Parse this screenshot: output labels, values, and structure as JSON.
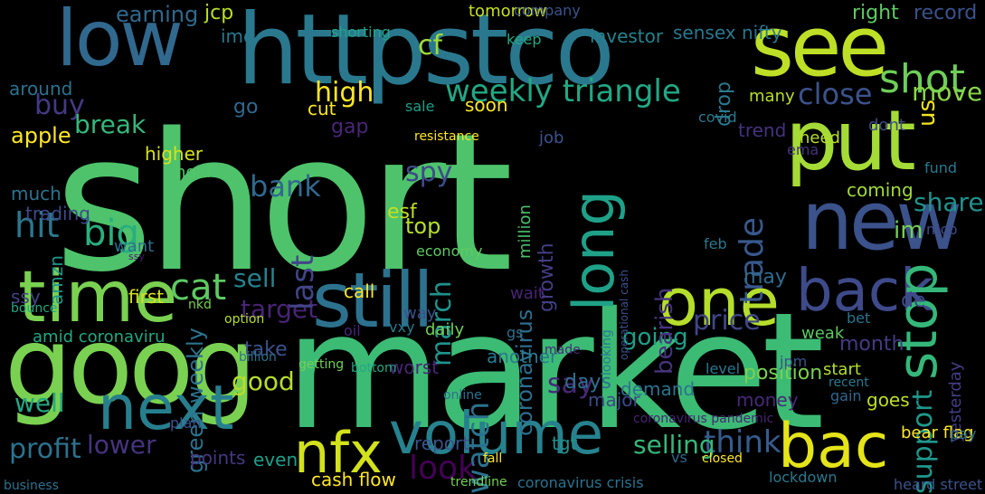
{
  "words": [
    {
      "text": "short",
      "color": "#4ec36b"
    },
    {
      "text": "market",
      "color": "#3cbb75"
    },
    {
      "text": "goog",
      "color": "#7ad151"
    },
    {
      "text": "httpstco",
      "color": "#2a788e"
    },
    {
      "text": "see",
      "color": "#bddf26"
    },
    {
      "text": "low",
      "color": "#31688e"
    },
    {
      "text": "put",
      "color": "#a5db36"
    },
    {
      "text": "new",
      "color": "#3b528b"
    },
    {
      "text": "time",
      "color": "#7ad151"
    },
    {
      "text": "still",
      "color": "#2c728e"
    },
    {
      "text": "volume",
      "color": "#26828e"
    },
    {
      "text": "one",
      "color": "#b5de2b"
    },
    {
      "text": "next",
      "color": "#277f8e"
    },
    {
      "text": "back",
      "color": "#3e4a89"
    },
    {
      "text": "long",
      "color": "#1fa188"
    },
    {
      "text": "nfx",
      "color": "#d2e21b"
    },
    {
      "text": "bac",
      "color": "#e5e419"
    },
    {
      "text": "stop",
      "color": "#35b779"
    },
    {
      "text": "shot",
      "color": "#6ece58"
    },
    {
      "text": "weekly triangle",
      "color": "#22a884"
    },
    {
      "text": "profit",
      "color": "#2c728e"
    },
    {
      "text": "lower",
      "color": "#46337e"
    },
    {
      "text": "look",
      "color": "#440154"
    },
    {
      "text": "think",
      "color": "#365c8d"
    },
    {
      "text": "selling",
      "color": "#35b779"
    },
    {
      "text": "going",
      "color": "#1f9e89"
    },
    {
      "text": "price",
      "color": "#404688"
    },
    {
      "text": "cat",
      "color": "#5ec962"
    },
    {
      "text": "hit",
      "color": "#2a788e"
    },
    {
      "text": "big",
      "color": "#29af7f"
    },
    {
      "text": "high",
      "color": "#fde725"
    },
    {
      "text": "close",
      "color": "#3b528b"
    },
    {
      "text": "move",
      "color": "#89d548"
    },
    {
      "text": "buy",
      "color": "#443983"
    },
    {
      "text": "break",
      "color": "#35b779"
    },
    {
      "text": "bank",
      "color": "#31688e"
    },
    {
      "text": "spy",
      "color": "#3e4a89"
    },
    {
      "text": "trade",
      "color": "#38588c"
    },
    {
      "text": "share",
      "color": "#21918c"
    },
    {
      "text": "target",
      "color": "#482475"
    },
    {
      "text": "watch",
      "color": "#2c728e"
    },
    {
      "text": "say",
      "color": "#482878"
    },
    {
      "text": "top",
      "color": "#b5de2b"
    },
    {
      "text": "support",
      "color": "#1f988b"
    },
    {
      "text": "coronavirus",
      "color": "#2e6e8e"
    },
    {
      "text": "bearish",
      "color": "#46337e"
    },
    {
      "text": "sell",
      "color": "#26828e"
    },
    {
      "text": "good",
      "color": "#b5de2b"
    },
    {
      "text": "well",
      "color": "#22a884"
    },
    {
      "text": "march",
      "color": "#20928c"
    },
    {
      "text": "last",
      "color": "#414487"
    },
    {
      "text": "green weekly",
      "color": "#2c728e"
    },
    {
      "text": "apple",
      "color": "#fde725"
    },
    {
      "text": "earning",
      "color": "#31688e"
    },
    {
      "text": "jcp",
      "color": "#b8de29"
    },
    {
      "text": "cf",
      "color": "#a0da39"
    },
    {
      "text": "us",
      "color": "#f1e51d"
    },
    {
      "text": "im",
      "color": "#73d056"
    },
    {
      "text": "de",
      "color": "#3e4989"
    },
    {
      "text": "esf",
      "color": "#c2df23"
    },
    {
      "text": "gap",
      "color": "#482677"
    },
    {
      "text": "tomorrow",
      "color": "#c8e020"
    },
    {
      "text": "investor",
      "color": "#26828e"
    },
    {
      "text": "sensex nifty",
      "color": "#2a788e"
    },
    {
      "text": "right",
      "color": "#5ec962"
    },
    {
      "text": "record",
      "color": "#3b528b"
    },
    {
      "text": "around",
      "color": "#2c728e"
    },
    {
      "text": "amid coronaviru",
      "color": "#22a884"
    },
    {
      "text": "month",
      "color": "#443a83"
    },
    {
      "text": "coming",
      "color": "#a0da39"
    },
    {
      "text": "may",
      "color": "#2f6c8e"
    },
    {
      "text": "growth",
      "color": "#433e85"
    },
    {
      "text": "days",
      "color": "#2e6f8e"
    },
    {
      "text": "position",
      "color": "#7ad151"
    },
    {
      "text": "cash flow",
      "color": "#fde725"
    },
    {
      "text": "report",
      "color": "#3b528b"
    },
    {
      "text": "goes",
      "color": "#bddf26"
    },
    {
      "text": "points",
      "color": "#453781"
    },
    {
      "text": "even",
      "color": "#1f9e89"
    },
    {
      "text": "tgt",
      "color": "#21918c"
    },
    {
      "text": "worst",
      "color": "#482475"
    },
    {
      "text": "another",
      "color": "#2a788e"
    },
    {
      "text": "take",
      "color": "#3b528b"
    },
    {
      "text": "call",
      "color": "#fde725"
    },
    {
      "text": "first",
      "color": "#d8e219"
    },
    {
      "text": "want",
      "color": "#2d708e"
    },
    {
      "text": "much",
      "color": "#2c728e"
    },
    {
      "text": "trading",
      "color": "#3e4a89"
    },
    {
      "text": "amzn",
      "color": "#1f968b"
    },
    {
      "text": "ssy",
      "color": "#414487"
    },
    {
      "text": "higher",
      "color": "#d8e219"
    },
    {
      "text": "hold",
      "color": "#52c569"
    },
    {
      "text": "million",
      "color": "#4ac16d"
    },
    {
      "text": "soon",
      "color": "#fde725"
    },
    {
      "text": "drop",
      "color": "#2a788e"
    },
    {
      "text": "trend",
      "color": "#46327e"
    },
    {
      "text": "need",
      "color": "#b5de2b"
    },
    {
      "text": "dont",
      "color": "#3e4a89"
    },
    {
      "text": "many",
      "color": "#b8de29"
    },
    {
      "text": "cut",
      "color": "#fde725"
    },
    {
      "text": "go",
      "color": "#31688e"
    },
    {
      "text": "imo",
      "color": "#2a788e"
    },
    {
      "text": "keep",
      "color": "#22a884"
    },
    {
      "text": "company",
      "color": "#3b528b"
    },
    {
      "text": "shorting",
      "color": "#20a386"
    },
    {
      "text": "ssy",
      "color": "#48186a"
    },
    {
      "text": "major",
      "color": "#3e4a89"
    },
    {
      "text": "money",
      "color": "#482878"
    },
    {
      "text": "demand",
      "color": "#2c728e"
    },
    {
      "text": "wait",
      "color": "#482475"
    },
    {
      "text": "way",
      "color": "#3b528b"
    },
    {
      "text": "daily",
      "color": "#73d056"
    },
    {
      "text": "vxy",
      "color": "#2a788e"
    },
    {
      "text": "gs",
      "color": "#2e6e8e"
    },
    {
      "text": "yesterday",
      "color": "#433e85"
    },
    {
      "text": "start",
      "color": "#b5de2b"
    },
    {
      "text": "bear flag",
      "color": "#fde725"
    },
    {
      "text": "weak",
      "color": "#5ec962"
    },
    {
      "text": "jpm",
      "color": "#3b528b"
    },
    {
      "text": "level",
      "color": "#2a788e"
    },
    {
      "text": "gain",
      "color": "#31688e"
    },
    {
      "text": "bet",
      "color": "#2c728e"
    },
    {
      "text": "oil",
      "color": "#482677"
    },
    {
      "text": "coronavirus crisis",
      "color": "#2c728e"
    },
    {
      "text": "coronavirus pandemic",
      "color": "#482475"
    },
    {
      "text": "lockdown",
      "color": "#2a788e"
    },
    {
      "text": "heard street",
      "color": "#3b528b"
    },
    {
      "text": "economy",
      "color": "#5ec962"
    },
    {
      "text": "bottom",
      "color": "#22a884"
    },
    {
      "text": "fall",
      "color": "#fde725"
    },
    {
      "text": "trendline",
      "color": "#73d056"
    },
    {
      "text": "business",
      "color": "#2c728e"
    },
    {
      "text": "covid",
      "color": "#2a788e"
    },
    {
      "text": "job",
      "color": "#3b528b"
    },
    {
      "text": "ema",
      "color": "#46337e"
    },
    {
      "text": "fund",
      "color": "#2a788e"
    },
    {
      "text": "mcp",
      "color": "#3e4a89"
    },
    {
      "text": "pay",
      "color": "#2c728e"
    },
    {
      "text": "resistance",
      "color": "#fde725"
    },
    {
      "text": "sale",
      "color": "#1f9e89"
    },
    {
      "text": "feb",
      "color": "#2a788e"
    },
    {
      "text": "vs",
      "color": "#31688e"
    },
    {
      "text": "plan",
      "color": "#3b528b"
    },
    {
      "text": "billion",
      "color": "#2c728e"
    },
    {
      "text": "option",
      "color": "#b5de2b"
    },
    {
      "text": "nkd",
      "color": "#7ad151"
    },
    {
      "text": "bounce",
      "color": "#22a884"
    },
    {
      "text": "operational cash",
      "color": "#3b528b"
    },
    {
      "text": "looking",
      "color": "#2a788e"
    },
    {
      "text": "made",
      "color": "#482878"
    },
    {
      "text": "online",
      "color": "#2c728e"
    },
    {
      "text": "closed",
      "color": "#fde725"
    },
    {
      "text": "recent",
      "color": "#2a788e"
    },
    {
      "text": "getting",
      "color": "#73d056"
    }
  ]
}
